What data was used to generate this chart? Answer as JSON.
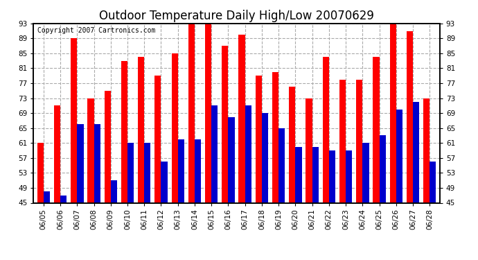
{
  "title": "Outdoor Temperature Daily High/Low 20070629",
  "copyright": "Copyright 2007 Cartronics.com",
  "dates": [
    "06/05",
    "06/06",
    "06/07",
    "06/08",
    "06/09",
    "06/10",
    "06/11",
    "06/12",
    "06/13",
    "06/14",
    "06/15",
    "06/16",
    "06/17",
    "06/18",
    "06/19",
    "06/20",
    "06/21",
    "06/22",
    "06/23",
    "06/24",
    "06/25",
    "06/26",
    "06/27",
    "06/28"
  ],
  "highs": [
    61,
    71,
    89,
    73,
    75,
    83,
    84,
    79,
    85,
    93,
    93,
    87,
    90,
    79,
    80,
    76,
    73,
    84,
    78,
    78,
    84,
    93,
    91,
    73
  ],
  "lows": [
    48,
    47,
    66,
    66,
    51,
    61,
    61,
    56,
    62,
    62,
    71,
    68,
    71,
    69,
    65,
    60,
    60,
    59,
    59,
    61,
    63,
    70,
    72,
    56
  ],
  "bar_color_high": "#ff0000",
  "bar_color_low": "#0000cc",
  "background_color": "#ffffff",
  "plot_bg_color": "#ffffff",
  "grid_color": "#aaaaaa",
  "ymin": 45,
  "ymax": 93,
  "yticks": [
    45,
    49,
    53,
    57,
    61,
    65,
    69,
    73,
    77,
    81,
    85,
    89,
    93
  ],
  "title_fontsize": 12,
  "copyright_fontsize": 7,
  "tick_fontsize": 7.5,
  "bar_width": 0.38
}
